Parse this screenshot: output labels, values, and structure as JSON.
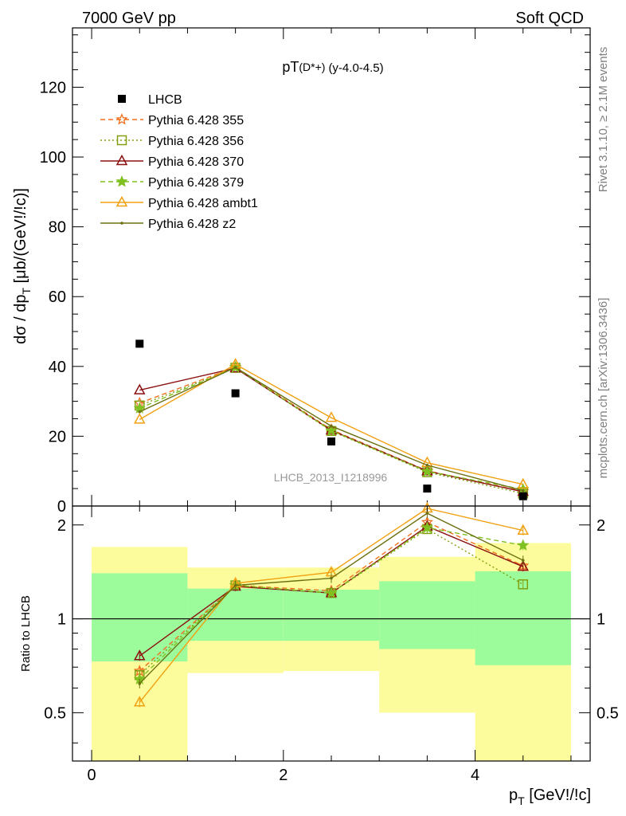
{
  "header": {
    "left": "7000 GeV pp",
    "right": "Soft QCD"
  },
  "side_labels": {
    "rivet": "Rivet 3.1.10, ≥ 2.1M events",
    "mcplots": "mcplots.cern.ch [arXiv:1306.3436]"
  },
  "chart_data": [
    {
      "type": "line",
      "title_main": "pT",
      "title_super": "(D*+)",
      "title_range": "(y-4.0-4.5)",
      "ylabel": "dσ / dp_T [μb/(GeV!/!c)]",
      "ylabel_main": "dσ / dp",
      "ylabel_sub": "T",
      "ylabel_unit": " [μb/(GeV!/!c)]",
      "watermark": "LHCB_2013_I1218996",
      "xlim": [
        -0.2,
        5.2
      ],
      "ylim": [
        0,
        137
      ],
      "yticks": [
        0,
        20,
        40,
        60,
        80,
        100,
        120
      ],
      "x": [
        0.5,
        1.5,
        2.5,
        3.5,
        4.5
      ],
      "data": {
        "name": "LHCB",
        "values": [
          46.5,
          32.3,
          18.5,
          5.0,
          2.8
        ]
      },
      "series": [
        {
          "name": "Pythia 6.428 355",
          "color": "#f07020",
          "dash": "6,4",
          "marker": "star-open",
          "values": [
            29.5,
            39.8,
            21.9,
            10.1,
            4.2
          ]
        },
        {
          "name": "Pythia 6.428 356",
          "color": "#80a010",
          "dash": "2,3",
          "marker": "square-open",
          "values": [
            28.8,
            39.6,
            21.5,
            9.7,
            3.6
          ]
        },
        {
          "name": "Pythia 6.428 370",
          "color": "#8b1010",
          "dash": "",
          "marker": "triangle-open",
          "values": [
            33.2,
            39.5,
            21.7,
            10.0,
            4.1
          ]
        },
        {
          "name": "Pythia 6.428 379",
          "color": "#80c020",
          "dash": "6,4",
          "marker": "star-filled",
          "values": [
            28.0,
            39.7,
            21.6,
            9.9,
            4.8
          ]
        },
        {
          "name": "Pythia 6.428 ambt1",
          "color": "#f0a010",
          "dash": "",
          "marker": "triangle-open",
          "values": [
            24.8,
            40.6,
            25.3,
            12.4,
            6.2
          ]
        },
        {
          "name": "Pythia 6.428 z2",
          "color": "#6b7010",
          "dash": "",
          "marker": "dot",
          "values": [
            27.0,
            39.7,
            22.9,
            11.7,
            4.4
          ]
        }
      ]
    },
    {
      "type": "line",
      "title": "",
      "xlabel": "p_T [GeV!/!c]",
      "xlabel_main": "p",
      "xlabel_sub": "T",
      "xlabel_unit": " [GeV!/!c]",
      "ylabel": "Ratio to LHCB",
      "xlim": [
        -0.2,
        5.2
      ],
      "ylim": [
        0.35,
        2.3
      ],
      "yticks": [
        0.5,
        1,
        2
      ],
      "ytick_labels": [
        "0.5",
        "1",
        "2"
      ],
      "xticks": [
        0,
        2,
        4
      ],
      "xtick_labels": [
        "0",
        "2",
        "4"
      ],
      "bands": {
        "edges": [
          0,
          1,
          2,
          3,
          4,
          5
        ],
        "green_low": [
          0.73,
          0.85,
          0.85,
          0.8,
          0.71
        ],
        "green_high": [
          1.4,
          1.25,
          1.24,
          1.32,
          1.42
        ],
        "yellow_low": [
          0.35,
          0.67,
          0.68,
          0.5,
          0.35
        ],
        "yellow_high": [
          1.7,
          1.46,
          1.46,
          1.58,
          1.75
        ],
        "green_color": "#9cfc9c",
        "yellow_color": "#fcfc9c"
      },
      "x": [
        0.5,
        1.5,
        2.5,
        3.5,
        4.5
      ],
      "series": [
        {
          "name": "Pythia 6.428 355",
          "color": "#f07020",
          "dash": "6,4",
          "marker": "star-open",
          "values": [
            0.68,
            1.28,
            1.23,
            2.04,
            1.48
          ]
        },
        {
          "name": "Pythia 6.428 356",
          "color": "#80a010",
          "dash": "2,3",
          "marker": "square-open",
          "values": [
            0.66,
            1.28,
            1.21,
            1.94,
            1.29
          ]
        },
        {
          "name": "Pythia 6.428 370",
          "color": "#8b1010",
          "dash": "",
          "marker": "triangle-open",
          "values": [
            0.76,
            1.27,
            1.21,
            1.98,
            1.47
          ]
        },
        {
          "name": "Pythia 6.428 379",
          "color": "#80c020",
          "dash": "6,4",
          "marker": "star-filled",
          "values": [
            0.64,
            1.28,
            1.21,
            1.96,
            1.72
          ]
        },
        {
          "name": "Pythia 6.428 ambt1",
          "color": "#f0a010",
          "dash": "",
          "marker": "triangle-open",
          "values": [
            0.54,
            1.3,
            1.41,
            2.26,
            1.92
          ]
        },
        {
          "name": "Pythia 6.428 z2",
          "color": "#6b7010",
          "dash": "",
          "marker": "dot",
          "values": [
            0.62,
            1.28,
            1.35,
            2.18,
            1.54
          ]
        }
      ]
    }
  ]
}
